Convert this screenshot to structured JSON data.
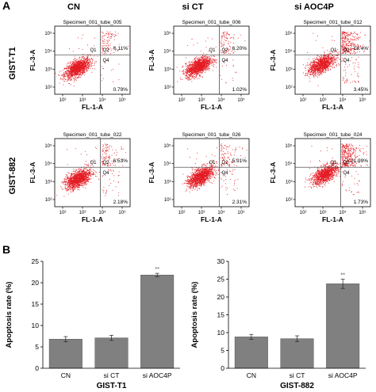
{
  "figure": {
    "panel_a_letter": "A",
    "panel_b_letter": "B",
    "columns": [
      "CN",
      "si CT",
      "si AOC4P"
    ],
    "rows": [
      "GIST-T1",
      "GIST-882"
    ]
  },
  "chart_data": [
    {
      "type": "scatter",
      "panel": "A",
      "plots": [
        {
          "row": "GIST-T1",
          "column": "CN",
          "specimen": "Specimen_001_tube_005",
          "x_label": "FL-1-A",
          "y_label": "FL-3-A",
          "quadrant_labels": [
            "Q1",
            "Q2",
            "Q4"
          ],
          "q2": "6.11%",
          "q4": "0.79%",
          "q2_fraction": 0.0611,
          "q4_fraction": 0.0079
        },
        {
          "row": "GIST-T1",
          "column": "si CT",
          "specimen": "Specimen_001_tube_006",
          "x_label": "FL-1-A",
          "y_label": "FL-3-A",
          "quadrant_labels": [
            "Q1",
            "Q2",
            "Q4"
          ],
          "q2": "6.20%",
          "q4": "1.02%",
          "q2_fraction": 0.062,
          "q4_fraction": 0.0102
        },
        {
          "row": "GIST-T1",
          "column": "si AOC4P",
          "specimen": "Specimen_001_tube_012",
          "x_label": "FL-1-A",
          "y_label": "FL-3-A",
          "quadrant_labels": [
            "Q1",
            "Q2",
            "Q4"
          ],
          "q2": "18.4%",
          "q4": "3.45%",
          "q2_fraction": 0.184,
          "q4_fraction": 0.0345
        },
        {
          "row": "GIST-882",
          "column": "CN",
          "specimen": "Specimen_001_tube_022",
          "x_label": "FL-1-A",
          "y_label": "FL-3-A",
          "quadrant_labels": [
            "Q1",
            "Q2",
            "Q4"
          ],
          "q2": "6.53%",
          "q4": "2.18%",
          "q2_fraction": 0.0653,
          "q4_fraction": 0.0218
        },
        {
          "row": "GIST-882",
          "column": "si CT",
          "specimen": "Specimen_001_tube_026",
          "x_label": "FL-1-A",
          "y_label": "FL-3-A",
          "quadrant_labels": [
            "Q1",
            "Q2",
            "Q4"
          ],
          "q2": "5.91%",
          "q4": "2.31%",
          "q2_fraction": 0.0591,
          "q4_fraction": 0.0231
        },
        {
          "row": "GIST-882",
          "column": "si AOC4P",
          "specimen": "Specimen_001_tube_024",
          "x_label": "FL-1-A",
          "y_label": "FL-3-A",
          "quadrant_labels": [
            "Q1",
            "Q2",
            "Q4"
          ],
          "q2": "21.99%",
          "q4": "1.73%",
          "q2_fraction": 0.2199,
          "q4_fraction": 0.0173
        }
      ],
      "x_ticks": [
        "10²",
        "10³",
        "10⁴",
        "10⁵"
      ],
      "y_ticks": [
        "10²",
        "10³",
        "10⁴",
        "10⁵"
      ],
      "x_range_log10": [
        1.6,
        5.4
      ],
      "y_range_log10": [
        1.6,
        5.4
      ],
      "gate_log10": {
        "x": 3.9,
        "y": 3.8
      },
      "dot_color": "#e31b23"
    },
    {
      "type": "bar",
      "panel": "B",
      "xlabel": "GIST-T1",
      "ylabel": "Apoptosis rate (%)",
      "categories": [
        "CN",
        "si CT",
        "si AOC4P"
      ],
      "values": [
        6.8,
        7.1,
        21.8
      ],
      "errors": [
        0.6,
        0.6,
        0.4
      ],
      "ylim": [
        0,
        25
      ],
      "yticks": [
        0,
        5,
        10,
        15,
        20,
        25
      ],
      "annotations": [
        "",
        "",
        "**"
      ],
      "bar_color": "#808080"
    },
    {
      "type": "bar",
      "panel": "B",
      "xlabel": "GIST-882",
      "ylabel": "Apoptosis rate (%)",
      "categories": [
        "CN",
        "si CT",
        "si AOC4P"
      ],
      "values": [
        8.8,
        8.3,
        23.7
      ],
      "errors": [
        0.7,
        0.8,
        1.3
      ],
      "ylim": [
        0,
        30
      ],
      "yticks": [
        0,
        5,
        10,
        15,
        20,
        25,
        30
      ],
      "annotations": [
        "",
        "",
        "**"
      ],
      "bar_color": "#808080"
    }
  ]
}
